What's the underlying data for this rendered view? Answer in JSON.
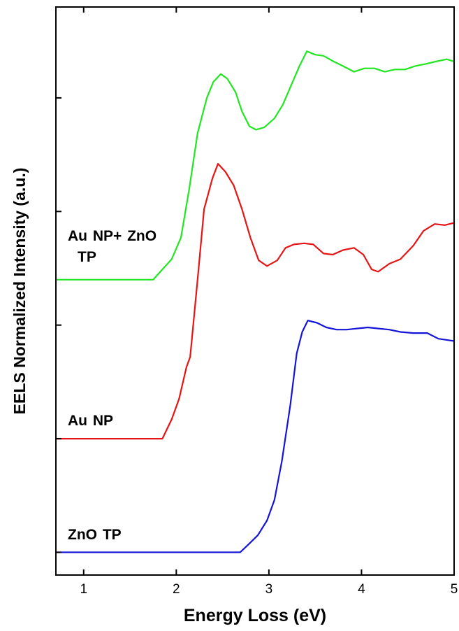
{
  "chart_data": {
    "type": "line",
    "xlabel": "Energy Loss (eV)",
    "ylabel": "EELS Normalized Intensity (a.u.)",
    "xlim": [
      0.7,
      5
    ],
    "xticks": [
      1,
      2,
      3,
      4,
      5
    ],
    "ylim": [
      -0.2,
      4.8
    ],
    "yticks": [
      0,
      1,
      2,
      3,
      4
    ],
    "series": [
      {
        "name": "Au NP+ ZnO TP",
        "color": "#22e622",
        "x": [
          0.7,
          1.75,
          1.85,
          1.95,
          2.05,
          2.14,
          2.23,
          2.33,
          2.4,
          2.48,
          2.55,
          2.64,
          2.71,
          2.79,
          2.86,
          2.95,
          3.06,
          3.15,
          3.24,
          3.33,
          3.41,
          3.5,
          3.59,
          3.7,
          3.8,
          3.92,
          4.03,
          4.14,
          4.25,
          4.36,
          4.47,
          4.58,
          4.7,
          4.8,
          4.92,
          5.0
        ],
        "values": [
          2.4,
          2.4,
          2.49,
          2.58,
          2.77,
          3.2,
          3.69,
          4.0,
          4.14,
          4.21,
          4.17,
          4.05,
          3.88,
          3.75,
          3.72,
          3.74,
          3.82,
          3.94,
          4.11,
          4.28,
          4.41,
          4.38,
          4.37,
          4.32,
          4.28,
          4.23,
          4.26,
          4.26,
          4.23,
          4.25,
          4.25,
          4.28,
          4.3,
          4.32,
          4.34,
          4.32
        ]
      },
      {
        "name": "Au NP",
        "color": "#e61414",
        "x": [
          0.7,
          1.85,
          1.95,
          2.03,
          2.11,
          2.15,
          2.23,
          2.3,
          2.39,
          2.45,
          2.53,
          2.62,
          2.71,
          2.8,
          2.89,
          2.98,
          3.09,
          3.18,
          3.27,
          3.38,
          3.48,
          3.59,
          3.69,
          3.8,
          3.92,
          4.02,
          4.11,
          4.18,
          4.3,
          4.42,
          4.56,
          4.67,
          4.79,
          4.9,
          5.0
        ],
        "values": [
          1.0,
          1.0,
          1.17,
          1.35,
          1.63,
          1.72,
          2.4,
          3.02,
          3.29,
          3.42,
          3.35,
          3.23,
          3.02,
          2.77,
          2.57,
          2.52,
          2.57,
          2.68,
          2.71,
          2.72,
          2.71,
          2.63,
          2.62,
          2.66,
          2.68,
          2.62,
          2.49,
          2.47,
          2.54,
          2.58,
          2.7,
          2.83,
          2.89,
          2.88,
          2.9
        ]
      },
      {
        "name": "ZnO TP",
        "color": "#1414d8",
        "x": [
          0.7,
          2.69,
          2.78,
          2.88,
          2.98,
          3.06,
          3.14,
          3.23,
          3.3,
          3.36,
          3.42,
          3.52,
          3.62,
          3.73,
          3.84,
          3.95,
          4.07,
          4.18,
          4.3,
          4.42,
          4.56,
          4.71,
          4.83,
          5.0
        ],
        "values": [
          0.0,
          0.0,
          0.07,
          0.15,
          0.28,
          0.46,
          0.8,
          1.29,
          1.75,
          1.94,
          2.04,
          2.02,
          1.98,
          1.96,
          1.96,
          1.97,
          1.98,
          1.97,
          1.96,
          1.94,
          1.93,
          1.93,
          1.88,
          1.86
        ]
      }
    ]
  }
}
